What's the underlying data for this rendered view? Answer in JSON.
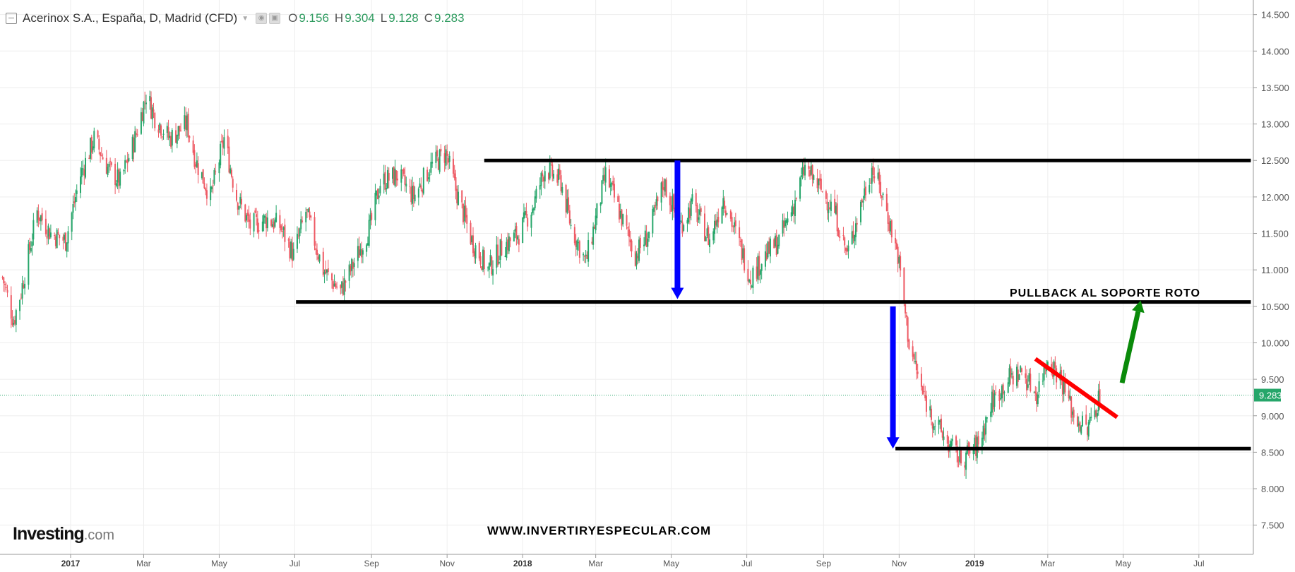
{
  "header": {
    "instrument": "Acerinox S.A., España, D, Madrid (CFD)",
    "open_label": "O",
    "open_value": "9.156",
    "high_label": "H",
    "high_value": "9.304",
    "low_label": "L",
    "low_value": "9.128",
    "close_label": "C",
    "close_value": "9.283"
  },
  "branding": {
    "logo_main": "Investing",
    "logo_suffix": ".com"
  },
  "watermark": "WWW.INVERTIRYESPECULAR.COM",
  "annotation": "PULLBACK AL SOPORTE ROTO",
  "colors": {
    "up": "#26a66a",
    "down": "#ee5a64",
    "support": "#000000",
    "blue_arrow": "#0000ff",
    "red_line": "#ff0000",
    "green_arrow": "#0a8a0a",
    "last_price": "#26a66a"
  },
  "chart_data": {
    "type": "candlestick",
    "title": "Acerinox S.A., España, D, Madrid (CFD)",
    "y_ticks": [
      "14.500",
      "14.000",
      "13.500",
      "13.000",
      "12.500",
      "12.000",
      "11.500",
      "11.000",
      "10.500",
      "10.000",
      "9.500",
      "9.000",
      "8.500",
      "8.000",
      "7.500"
    ],
    "ylim": [
      7.1,
      14.7
    ],
    "x_ticks": [
      "2017",
      "Mar",
      "May",
      "Jul",
      "Sep",
      "Nov",
      "2018",
      "Mar",
      "May",
      "Jul",
      "Sep",
      "Nov",
      "2019",
      "Mar",
      "May",
      "Jul"
    ],
    "x_tick_dates": [
      "2017-01-01",
      "2017-03-01",
      "2017-05-01",
      "2017-07-01",
      "2017-09-01",
      "2017-11-01",
      "2018-01-01",
      "2018-03-01",
      "2018-05-01",
      "2018-07-01",
      "2018-09-01",
      "2018-11-01",
      "2019-01-01",
      "2019-03-01",
      "2019-05-01",
      "2019-07-01"
    ],
    "xlim": [
      "2016-11-05",
      "2019-08-14"
    ],
    "last_price": 9.283,
    "last_price_label": "9.283",
    "ohlc_sample": {
      "date": "2019-04-12",
      "open": 9.156,
      "high": 9.304,
      "low": 9.128,
      "close": 9.283
    },
    "price_path": [
      [
        "2016-11-07",
        10.9
      ],
      [
        "2016-11-16",
        10.3
      ],
      [
        "2016-11-22",
        10.7
      ],
      [
        "2016-12-05",
        11.8
      ],
      [
        "2016-12-16",
        11.5
      ],
      [
        "2016-12-28",
        11.4
      ],
      [
        "2017-01-09",
        12.3
      ],
      [
        "2017-01-20",
        12.8
      ],
      [
        "2017-01-31",
        12.4
      ],
      [
        "2017-02-10",
        12.2
      ],
      [
        "2017-02-22",
        12.8
      ],
      [
        "2017-03-03",
        13.4
      ],
      [
        "2017-03-10",
        13.1
      ],
      [
        "2017-03-22",
        12.8
      ],
      [
        "2017-04-05",
        13.0
      ],
      [
        "2017-04-12",
        12.5
      ],
      [
        "2017-04-24",
        12.0
      ],
      [
        "2017-05-05",
        12.8
      ],
      [
        "2017-05-15",
        12.0
      ],
      [
        "2017-05-26",
        11.6
      ],
      [
        "2017-06-09",
        11.7
      ],
      [
        "2017-06-19",
        11.6
      ],
      [
        "2017-06-30",
        11.2
      ],
      [
        "2017-07-10",
        11.8
      ],
      [
        "2017-07-24",
        11.0
      ],
      [
        "2017-08-07",
        10.7
      ],
      [
        "2017-08-18",
        11.1
      ],
      [
        "2017-08-31",
        11.6
      ],
      [
        "2017-09-08",
        12.2
      ],
      [
        "2017-09-22",
        12.3
      ],
      [
        "2017-10-05",
        12.0
      ],
      [
        "2017-10-18",
        12.4
      ],
      [
        "2017-10-31",
        12.6
      ],
      [
        "2017-11-08",
        12.1
      ],
      [
        "2017-11-21",
        11.4
      ],
      [
        "2017-12-04",
        11.0
      ],
      [
        "2017-12-15",
        11.3
      ],
      [
        "2017-12-29",
        11.5
      ],
      [
        "2018-01-10",
        11.9
      ],
      [
        "2018-01-19",
        12.4
      ],
      [
        "2018-02-01",
        12.2
      ],
      [
        "2018-02-09",
        11.6
      ],
      [
        "2018-02-21",
        11.1
      ],
      [
        "2018-03-01",
        11.7
      ],
      [
        "2018-03-09",
        12.3
      ],
      [
        "2018-03-20",
        11.8
      ],
      [
        "2018-04-02",
        11.2
      ],
      [
        "2018-04-13",
        11.5
      ],
      [
        "2018-04-25",
        12.2
      ],
      [
        "2018-05-08",
        11.6
      ],
      [
        "2018-05-18",
        11.9
      ],
      [
        "2018-06-01",
        11.4
      ],
      [
        "2018-06-12",
        12.0
      ],
      [
        "2018-06-22",
        11.5
      ],
      [
        "2018-07-04",
        10.9
      ],
      [
        "2018-07-16",
        11.2
      ],
      [
        "2018-07-27",
        11.4
      ],
      [
        "2018-08-08",
        11.9
      ],
      [
        "2018-08-17",
        12.4
      ],
      [
        "2018-08-30",
        12.1
      ],
      [
        "2018-09-10",
        11.8
      ],
      [
        "2018-09-20",
        11.2
      ],
      [
        "2018-10-01",
        11.9
      ],
      [
        "2018-10-10",
        12.4
      ],
      [
        "2018-10-19",
        12.0
      ],
      [
        "2018-10-31",
        11.2
      ],
      [
        "2018-11-09",
        10.0
      ],
      [
        "2018-11-20",
        9.3
      ],
      [
        "2018-11-30",
        8.9
      ],
      [
        "2018-12-11",
        8.6
      ],
      [
        "2018-12-21",
        8.4
      ],
      [
        "2019-01-04",
        8.6
      ],
      [
        "2019-01-15",
        9.2
      ],
      [
        "2019-01-28",
        9.5
      ],
      [
        "2019-02-08",
        9.6
      ],
      [
        "2019-02-20",
        9.3
      ],
      [
        "2019-03-01",
        9.8
      ],
      [
        "2019-03-12",
        9.5
      ],
      [
        "2019-03-22",
        9.0
      ],
      [
        "2019-04-02",
        8.8
      ],
      [
        "2019-04-12",
        9.28
      ]
    ],
    "support_lines": [
      {
        "value": 12.5,
        "from": "2017-12-01",
        "to": "2019-08-12"
      },
      {
        "value": 10.56,
        "from": "2017-07-02",
        "to": "2019-08-12"
      },
      {
        "value": 8.55,
        "from": "2018-10-29",
        "to": "2019-08-12"
      }
    ],
    "blue_arrows": [
      {
        "date": "2018-05-06",
        "from": 12.5,
        "to": 10.6
      },
      {
        "date": "2018-10-27",
        "from": 10.5,
        "to": 8.55
      }
    ],
    "red_line": {
      "from": [
        "2019-02-19",
        9.78
      ],
      "to": [
        "2019-04-26",
        8.98
      ]
    },
    "green_arrow": {
      "from": [
        "2019-04-30",
        9.45
      ],
      "to": [
        "2019-05-15",
        10.58
      ]
    }
  }
}
